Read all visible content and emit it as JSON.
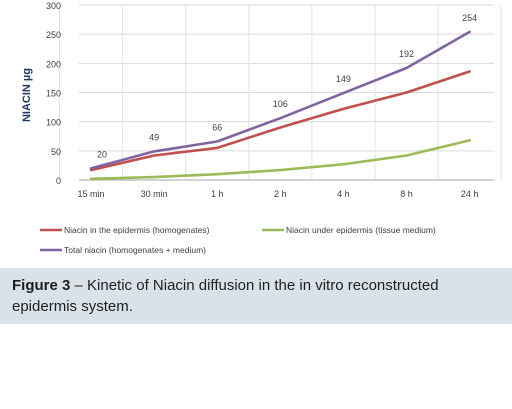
{
  "chart_data": {
    "type": "line",
    "title": "",
    "xlabel": "",
    "ylabel": "NIACIN µg",
    "ylim": [
      0,
      300
    ],
    "yticks": [
      0,
      50,
      100,
      150,
      200,
      250,
      300
    ],
    "grid": true,
    "legend_position": "bottom",
    "categories": [
      "15 min",
      "30 min",
      "1 h",
      "2 h",
      "4 h",
      "8 h",
      "24 h"
    ],
    "series": [
      {
        "name": "Niacin in the epidermis (homogenates)",
        "color": "#c0504d",
        "values": [
          17,
          42,
          55,
          90,
          122,
          150,
          186
        ]
      },
      {
        "name": "Niacin under epidermis (tissue medium)",
        "color": "#9bbb59",
        "values": [
          2,
          5,
          10,
          17,
          27,
          42,
          68
        ]
      },
      {
        "name": "Total niacin  (homogenates + medium)",
        "color": "#8064a2",
        "values": [
          20,
          49,
          66,
          106,
          149,
          192,
          254
        ],
        "data_labels": [
          "20",
          "49",
          "66",
          "106",
          "149",
          "192",
          "254"
        ]
      }
    ]
  },
  "caption": {
    "label": "Figure 3",
    "text": " – Kinetic of Niacin diffusion in the in vitro reconstructed epidermis system."
  }
}
